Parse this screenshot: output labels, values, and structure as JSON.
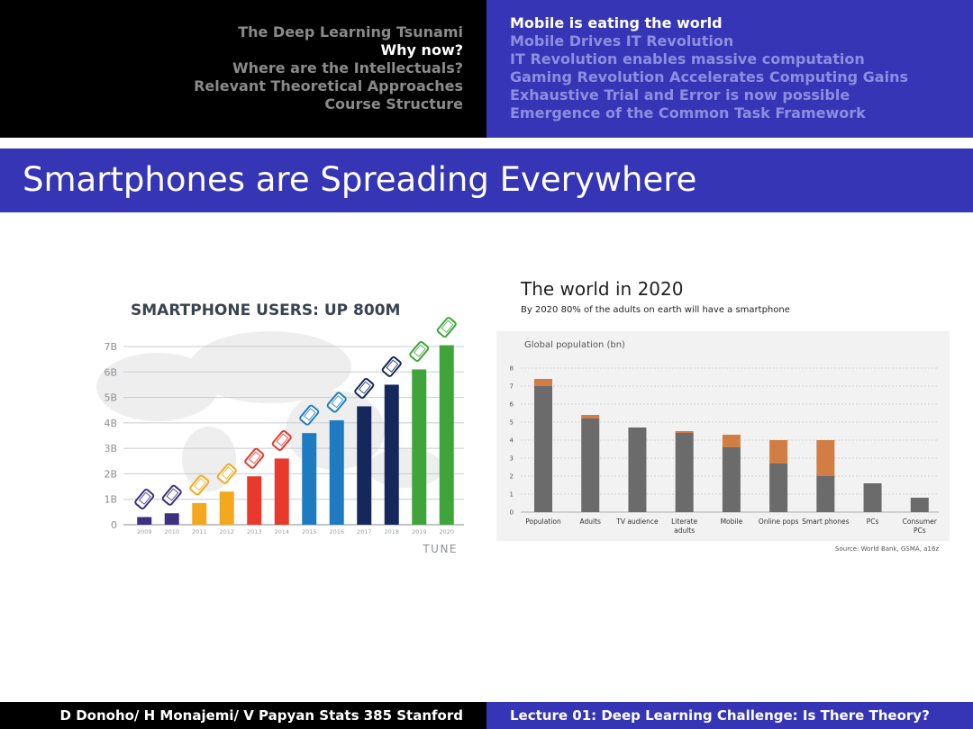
{
  "nav": {
    "sections": [
      {
        "label": "The Deep Learning Tsunami"
      },
      {
        "label": "Why now?"
      },
      {
        "label": "Where are the Intellectuals?"
      },
      {
        "label": "Relevant Theoretical Approaches"
      },
      {
        "label": "Course Structure"
      }
    ],
    "subsections": [
      {
        "label": "Mobile is eating the world"
      },
      {
        "label": "Mobile Drives IT Revolution"
      },
      {
        "label": "IT Revolution enables massive computation"
      },
      {
        "label": "Gaming Revolution Accelerates Computing Gains"
      },
      {
        "label": "Exhaustive Trial and Error is now possible"
      },
      {
        "label": "Emergence of the Common Task Framework"
      }
    ],
    "current_section": 1,
    "current_subsection": 0
  },
  "slide": {
    "title": "Smartphones are Spreading Everywhere"
  },
  "footer": {
    "left": "D Donoho/ H Monajemi/ V Papyan Stats 385 Stanford",
    "right": "Lecture 01: Deep Learning Challenge:   Is There Theory?"
  },
  "chart_data": [
    {
      "type": "bar",
      "title": "SMARTPHONE USERS: UP 800M",
      "categories": [
        "2009",
        "2010",
        "2011",
        "2012",
        "2013",
        "2014",
        "2015",
        "2016",
        "2017",
        "2018",
        "2019",
        "2020"
      ],
      "values": [
        0.3,
        0.45,
        0.85,
        1.3,
        1.9,
        2.6,
        3.6,
        4.1,
        4.65,
        5.5,
        6.1,
        7.05
      ],
      "colors": [
        "#3d3080",
        "#3d3080",
        "#f4a81d",
        "#f4a81d",
        "#e8392c",
        "#e8392c",
        "#1f7bc1",
        "#1f7bc1",
        "#14285b",
        "#14285b",
        "#3fa53b",
        "#3fa53b"
      ],
      "ytick_labels": [
        "0",
        "1B",
        "2B",
        "3B",
        "4B",
        "5B",
        "6B",
        "7B"
      ],
      "ylim": [
        0,
        7
      ],
      "grid": true,
      "brand": "TUNE",
      "xlabel": "",
      "ylabel": ""
    },
    {
      "type": "bar",
      "title": "The world in 2020",
      "subtitle": "By 2020 80% of the adults on earth will have a smartphone",
      "panel_label": "Global population (bn)",
      "categories": [
        "Population",
        "Adults",
        "TV audience",
        "Literate adults",
        "Mobile",
        "Online pops",
        "Smart phones",
        "PCs",
        "Consumer PCs"
      ],
      "category_lines": [
        [
          "Population"
        ],
        [
          "Adults"
        ],
        [
          "TV audience"
        ],
        [
          "Literate",
          "adults"
        ],
        [
          "Mobile"
        ],
        [
          "Online pops"
        ],
        [
          "Smart phones"
        ],
        [
          "PCs"
        ],
        [
          "Consumer",
          "PCs"
        ]
      ],
      "series": [
        {
          "values": [
            7.0,
            5.2,
            4.7,
            4.4,
            3.6,
            2.7,
            2.0,
            1.6,
            0.8
          ]
        },
        {
          "values": [
            0.4,
            0.2,
            0.0,
            0.1,
            0.7,
            1.3,
            2.0,
            0.0,
            0.0
          ]
        }
      ],
      "stacked": true,
      "colors": [
        "#6b6b6b",
        "#d17e45"
      ],
      "ylim": [
        0,
        8
      ],
      "yticks": [
        0,
        1,
        2,
        3,
        4,
        5,
        6,
        7,
        8
      ],
      "grid": true,
      "source": "Source: World Bank, GSMA, a16z",
      "xlabel": "",
      "ylabel": ""
    }
  ]
}
